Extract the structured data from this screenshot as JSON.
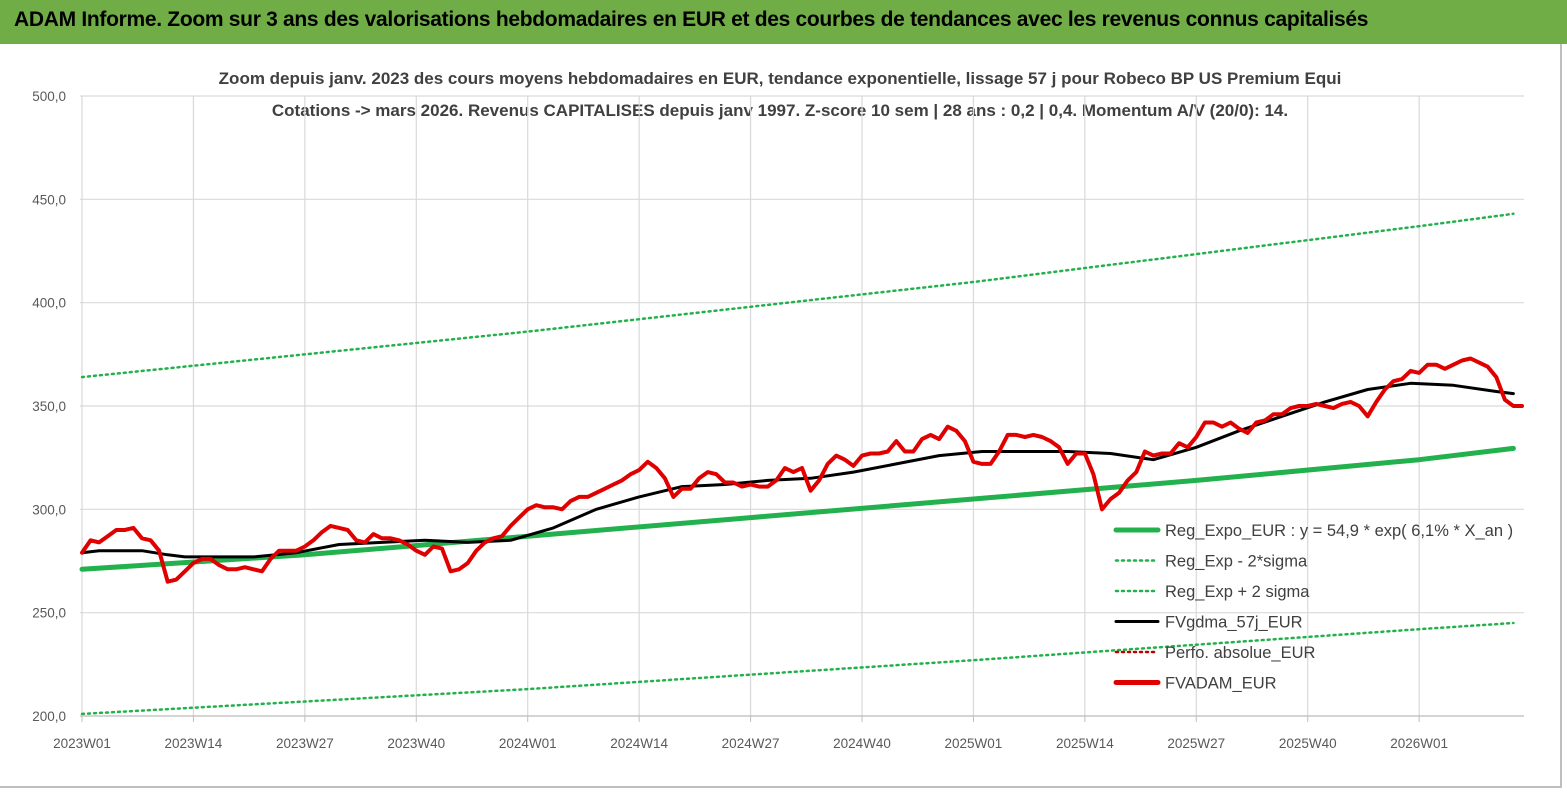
{
  "header": {
    "title": "ADAM Informe. Zoom sur 3 ans des valorisations hebdomadaires en EUR et des courbes de tendances avec les revenus connus capitalisés"
  },
  "chart_data": {
    "type": "line",
    "title": "Zoom depuis janv. 2023 des cours moyens hebdomadaires en EUR, tendance exponentielle, lissage 57 j pour Robeco BP US Premium Equi",
    "subtitle": "Cotations -> mars 2026. Revenus CAPITALISES depuis janv 1997. Z-score 10 sem | 28 ans : 0,2 | 0,4. Momentum A/V (20/0): 14.",
    "xlabel": "",
    "ylabel": "",
    "ylim": [
      200,
      500
    ],
    "yticks": [
      "200,0",
      "250,0",
      "300,0",
      "350,0",
      "400,0",
      "450,0",
      "500,0"
    ],
    "xticks": [
      "2023W01",
      "2023W14",
      "2023W27",
      "2023W40",
      "2024W01",
      "2024W14",
      "2024W27",
      "2024W40",
      "2025W01",
      "2025W14",
      "2025W27",
      "2025W40",
      "2026W01"
    ],
    "grid": true,
    "legend_position": "bottom-right",
    "legend": [
      {
        "label": "Reg_Expo_EUR : y = 54,9 * exp( 6,1% *  X_an )",
        "color": "#22b14c",
        "style": "solid-thick"
      },
      {
        "label": "Reg_Exp - 2*sigma",
        "color": "#22b14c",
        "style": "dotted"
      },
      {
        "label": "Reg_Exp + 2 sigma",
        "color": "#22b14c",
        "style": "dotted"
      },
      {
        "label": "FVgdma_57j_EUR",
        "color": "#000000",
        "style": "solid"
      },
      {
        "label": "Perfo. absolue_EUR",
        "color": "#c00000",
        "style": "dotted"
      },
      {
        "label": "FVADAM_EUR",
        "color": "#e00000",
        "style": "solid-thick"
      }
    ],
    "x_weeks": 168,
    "series": [
      {
        "name": "Reg_Expo_EUR : y = 54,9 * exp( 6,1% *  X_an )",
        "color": "#22b14c",
        "width": 5,
        "dash": "",
        "points": [
          [
            0,
            271
          ],
          [
            26,
            278
          ],
          [
            52,
            287
          ],
          [
            78,
            296
          ],
          [
            104,
            305
          ],
          [
            130,
            314
          ],
          [
            156,
            324
          ],
          [
            167,
            329.5
          ]
        ]
      },
      {
        "name": "Reg_Exp + 2 sigma",
        "color": "#22b14c",
        "width": 2.5,
        "dash": "2 4",
        "points": [
          [
            0,
            364
          ],
          [
            52,
            386
          ],
          [
            104,
            410
          ],
          [
            156,
            437
          ],
          [
            167,
            443
          ]
        ]
      },
      {
        "name": "Reg_Exp - 2*sigma",
        "color": "#22b14c",
        "width": 2.5,
        "dash": "2 4",
        "points": [
          [
            0,
            201
          ],
          [
            52,
            213
          ],
          [
            104,
            227
          ],
          [
            156,
            242
          ],
          [
            167,
            245
          ]
        ]
      },
      {
        "name": "FVgdma_57j_EUR",
        "color": "#000000",
        "width": 3,
        "dash": "",
        "points": [
          [
            0,
            279
          ],
          [
            2,
            280
          ],
          [
            4,
            280
          ],
          [
            7,
            280
          ],
          [
            10,
            278
          ],
          [
            12,
            277
          ],
          [
            15,
            277
          ],
          [
            20,
            277
          ],
          [
            25,
            279
          ],
          [
            30,
            283
          ],
          [
            35,
            284
          ],
          [
            40,
            285
          ],
          [
            45,
            284
          ],
          [
            50,
            285
          ],
          [
            55,
            291
          ],
          [
            60,
            300
          ],
          [
            65,
            306
          ],
          [
            70,
            311
          ],
          [
            75,
            312
          ],
          [
            80,
            314
          ],
          [
            85,
            315
          ],
          [
            90,
            318
          ],
          [
            95,
            322
          ],
          [
            100,
            326
          ],
          [
            105,
            328
          ],
          [
            110,
            328
          ],
          [
            115,
            328
          ],
          [
            120,
            327
          ],
          [
            125,
            324
          ],
          [
            130,
            330
          ],
          [
            135,
            338
          ],
          [
            140,
            345
          ],
          [
            145,
            352
          ],
          [
            150,
            358
          ],
          [
            155,
            361
          ],
          [
            160,
            360
          ],
          [
            165,
            357
          ],
          [
            167,
            356
          ]
        ]
      },
      {
        "name": "FVADAM_EUR",
        "color": "#e00000",
        "width": 4,
        "dash": "",
        "points": [
          [
            0,
            279
          ],
          [
            1,
            285
          ],
          [
            2,
            284
          ],
          [
            3,
            287
          ],
          [
            4,
            290
          ],
          [
            5,
            290
          ],
          [
            6,
            291
          ],
          [
            7,
            286
          ],
          [
            8,
            285
          ],
          [
            9,
            280
          ],
          [
            10,
            265
          ],
          [
            11,
            266
          ],
          [
            12,
            270
          ],
          [
            13,
            274
          ],
          [
            14,
            276
          ],
          [
            15,
            276
          ],
          [
            16,
            273
          ],
          [
            17,
            271
          ],
          [
            18,
            271
          ],
          [
            19,
            272
          ],
          [
            20,
            271
          ],
          [
            21,
            270
          ],
          [
            22,
            276
          ],
          [
            23,
            280
          ],
          [
            24,
            280
          ],
          [
            25,
            280
          ],
          [
            26,
            282
          ],
          [
            27,
            285
          ],
          [
            28,
            289
          ],
          [
            29,
            292
          ],
          [
            30,
            291
          ],
          [
            31,
            290
          ],
          [
            32,
            285
          ],
          [
            33,
            284
          ],
          [
            34,
            288
          ],
          [
            35,
            286
          ],
          [
            36,
            286
          ],
          [
            37,
            285
          ],
          [
            38,
            283
          ],
          [
            39,
            280
          ],
          [
            40,
            278
          ],
          [
            41,
            282
          ],
          [
            42,
            281
          ],
          [
            43,
            270
          ],
          [
            44,
            271
          ],
          [
            45,
            274
          ],
          [
            46,
            280
          ],
          [
            47,
            284
          ],
          [
            48,
            286
          ],
          [
            49,
            287
          ],
          [
            50,
            292
          ],
          [
            51,
            296
          ],
          [
            52,
            300
          ],
          [
            53,
            302
          ],
          [
            54,
            301
          ],
          [
            55,
            301
          ],
          [
            56,
            300
          ],
          [
            57,
            304
          ],
          [
            58,
            306
          ],
          [
            59,
            306
          ],
          [
            60,
            308
          ],
          [
            61,
            310
          ],
          [
            62,
            312
          ],
          [
            63,
            314
          ],
          [
            64,
            317
          ],
          [
            65,
            319
          ],
          [
            66,
            323
          ],
          [
            67,
            320
          ],
          [
            68,
            315
          ],
          [
            69,
            306
          ],
          [
            70,
            310
          ],
          [
            71,
            310
          ],
          [
            72,
            315
          ],
          [
            73,
            318
          ],
          [
            74,
            317
          ],
          [
            75,
            313
          ],
          [
            76,
            313
          ],
          [
            77,
            311
          ],
          [
            78,
            312
          ],
          [
            79,
            311
          ],
          [
            80,
            311
          ],
          [
            81,
            314
          ],
          [
            82,
            320
          ],
          [
            83,
            318
          ],
          [
            84,
            320
          ],
          [
            85,
            309
          ],
          [
            86,
            314
          ],
          [
            87,
            322
          ],
          [
            88,
            326
          ],
          [
            89,
            324
          ],
          [
            90,
            321
          ],
          [
            91,
            326
          ],
          [
            92,
            327
          ],
          [
            93,
            327
          ],
          [
            94,
            328
          ],
          [
            95,
            333
          ],
          [
            96,
            328
          ],
          [
            97,
            328
          ],
          [
            98,
            334
          ],
          [
            99,
            336
          ],
          [
            100,
            334
          ],
          [
            101,
            340
          ],
          [
            102,
            338
          ],
          [
            103,
            333
          ],
          [
            104,
            323
          ],
          [
            105,
            322
          ],
          [
            106,
            322
          ],
          [
            107,
            328
          ],
          [
            108,
            336
          ],
          [
            109,
            336
          ],
          [
            110,
            335
          ],
          [
            111,
            336
          ],
          [
            112,
            335
          ],
          [
            113,
            333
          ],
          [
            114,
            330
          ],
          [
            115,
            322
          ],
          [
            116,
            327
          ],
          [
            117,
            327
          ],
          [
            118,
            317
          ],
          [
            119,
            300
          ],
          [
            120,
            305
          ],
          [
            121,
            308
          ],
          [
            122,
            314
          ],
          [
            123,
            318
          ],
          [
            124,
            328
          ],
          [
            125,
            326
          ],
          [
            126,
            327
          ],
          [
            127,
            327
          ],
          [
            128,
            332
          ],
          [
            129,
            330
          ],
          [
            130,
            335
          ],
          [
            131,
            342
          ],
          [
            132,
            342
          ],
          [
            133,
            340
          ],
          [
            134,
            342
          ],
          [
            135,
            339
          ],
          [
            136,
            337
          ],
          [
            137,
            342
          ],
          [
            138,
            343
          ],
          [
            139,
            346
          ],
          [
            140,
            346
          ],
          [
            141,
            349
          ],
          [
            142,
            350
          ],
          [
            143,
            350
          ],
          [
            144,
            351
          ],
          [
            145,
            350
          ],
          [
            146,
            349
          ],
          [
            147,
            351
          ],
          [
            148,
            352
          ],
          [
            149,
            350
          ],
          [
            150,
            345
          ],
          [
            151,
            352
          ],
          [
            152,
            358
          ],
          [
            153,
            362
          ],
          [
            154,
            363
          ],
          [
            155,
            367
          ],
          [
            156,
            366
          ],
          [
            157,
            370
          ],
          [
            158,
            370
          ],
          [
            159,
            368
          ],
          [
            160,
            370
          ],
          [
            161,
            372
          ],
          [
            162,
            373
          ],
          [
            163,
            371
          ],
          [
            164,
            369
          ],
          [
            165,
            364
          ],
          [
            166,
            353
          ],
          [
            167,
            350
          ],
          [
            168,
            350
          ]
        ]
      }
    ]
  }
}
